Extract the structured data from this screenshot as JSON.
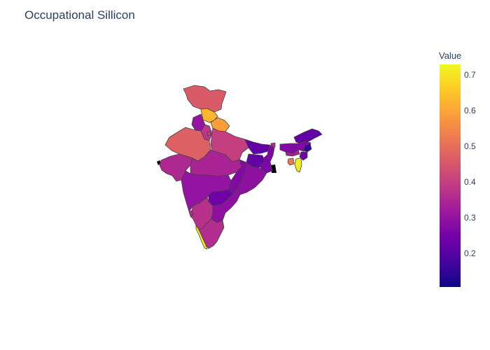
{
  "title": "Occupational Sillicon",
  "colorbar": {
    "title": "Value",
    "ticks": [
      {
        "label": "0.7",
        "value": 0.7
      },
      {
        "label": "0.6",
        "value": 0.6
      },
      {
        "label": "0.5",
        "value": 0.5
      },
      {
        "label": "0.4",
        "value": 0.4
      },
      {
        "label": "0.3",
        "value": 0.3
      },
      {
        "label": "0.2",
        "value": 0.2
      }
    ],
    "min": 0.105,
    "max": 0.73,
    "colorscale": [
      "#0d0887",
      "#46039f",
      "#7201a8",
      "#9c179e",
      "#bd3786",
      "#d8576b",
      "#ed7953",
      "#fb9f3a",
      "#fdca26",
      "#f0f921"
    ]
  },
  "map_data": {
    "type": "choropleth",
    "regions": [
      {
        "name": "Jammu and Kashmir",
        "value": 0.46
      },
      {
        "name": "Himachal Pradesh",
        "value": 0.63
      },
      {
        "name": "Punjab",
        "value": 0.3
      },
      {
        "name": "Uttarakhand",
        "value": 0.59
      },
      {
        "name": "Haryana",
        "value": 0.38
      },
      {
        "name": "Delhi",
        "value": 0.4
      },
      {
        "name": "Rajasthan",
        "value": 0.47
      },
      {
        "name": "Uttar Pradesh",
        "value": 0.4
      },
      {
        "name": "Bihar",
        "value": 0.22
      },
      {
        "name": "Sikkim",
        "value": 0.36
      },
      {
        "name": "Arunachal Pradesh",
        "value": 0.22
      },
      {
        "name": "Assam",
        "value": 0.27
      },
      {
        "name": "Meghalaya",
        "value": 0.33
      },
      {
        "name": "Nagaland",
        "value": 0.15
      },
      {
        "name": "Manipur",
        "value": 0.24
      },
      {
        "name": "Mizoram",
        "value": 0.71
      },
      {
        "name": "Tripura",
        "value": 0.52
      },
      {
        "name": "West Bengal",
        "value": 0.26
      },
      {
        "name": "Jharkhand",
        "value": 0.22
      },
      {
        "name": "Gujarat",
        "value": 0.35
      },
      {
        "name": "Madhya Pradesh",
        "value": 0.34
      },
      {
        "name": "Chhattisgarh",
        "value": 0.27
      },
      {
        "name": "Odisha",
        "value": 0.29
      },
      {
        "name": "Maharashtra",
        "value": 0.3
      },
      {
        "name": "Telangana",
        "value": 0.24
      },
      {
        "name": "Andhra Pradesh",
        "value": 0.29
      },
      {
        "name": "Goa",
        "value": 0.36
      },
      {
        "name": "Karnataka",
        "value": 0.37
      },
      {
        "name": "Kerala",
        "value": 0.72
      },
      {
        "name": "Tamil Nadu",
        "value": 0.36
      }
    ]
  }
}
